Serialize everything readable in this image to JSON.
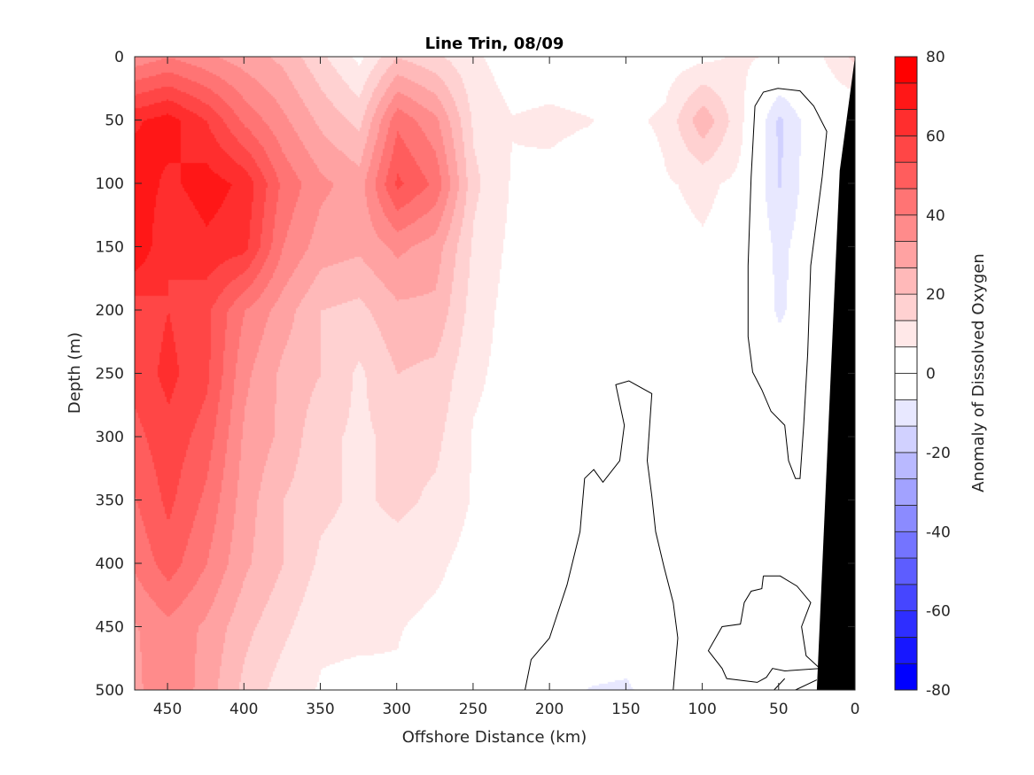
{
  "chart_data": {
    "type": "heatmap",
    "subtype": "filled-contour",
    "title": "Line Trin, 08/09",
    "xlabel": "Offshore Distance (km)",
    "ylabel": "Depth (m)",
    "colorbar_label": "Anomaly of Dissolved Oxygen",
    "xlim": [
      0,
      471.5
    ],
    "x_reversed": true,
    "ylim": [
      0,
      500
    ],
    "y_reversed": true,
    "xticks": [
      450,
      400,
      350,
      300,
      250,
      200,
      150,
      100,
      50,
      0
    ],
    "yticks": [
      0,
      50,
      100,
      150,
      200,
      250,
      300,
      350,
      400,
      450,
      500
    ],
    "clim": [
      -80,
      80
    ],
    "n_levels": 24,
    "colorbar_ticks": [
      80,
      60,
      40,
      20,
      0,
      -20,
      -40,
      -60,
      -80
    ],
    "colors": {
      "positive": "#ff0000",
      "negative": "#0000ff",
      "neutral": "#ffffff",
      "bathymetry": "#000000",
      "contour": "#000000"
    },
    "grid_x_km": [
      475,
      450,
      425,
      400,
      375,
      350,
      325,
      300,
      275,
      250,
      225,
      200,
      175,
      150,
      125,
      100,
      75,
      50,
      25,
      0
    ],
    "grid_depth_m": [
      0,
      50,
      100,
      150,
      200,
      250,
      300,
      350,
      400,
      450,
      500
    ],
    "z": [
      [
        35,
        40,
        35,
        30,
        25,
        15,
        5,
        20,
        15,
        8,
        3,
        3,
        2,
        0,
        3,
        5,
        8,
        5,
        5,
        15
      ],
      [
        65,
        70,
        60,
        45,
        35,
        25,
        18,
        45,
        35,
        12,
        7,
        8,
        7,
        5,
        8,
        25,
        8,
        -15,
        0,
        0
      ],
      [
        72,
        65,
        70,
        65,
        45,
        35,
        30,
        55,
        45,
        15,
        6,
        5,
        3,
        0,
        6,
        8,
        5,
        -14,
        0,
        0
      ],
      [
        75,
        60,
        65,
        62,
        40,
        30,
        28,
        35,
        30,
        12,
        5,
        5,
        4,
        0,
        5,
        6,
        4,
        -9,
        0,
        0
      ],
      [
        55,
        60,
        55,
        40,
        30,
        20,
        18,
        25,
        25,
        10,
        4,
        3,
        4,
        0,
        4,
        5,
        3,
        -8,
        0,
        0
      ],
      [
        55,
        62,
        55,
        35,
        25,
        20,
        12,
        20,
        18,
        8,
        4,
        3,
        2,
        3,
        4,
        4,
        3,
        -2,
        0,
        0
      ],
      [
        50,
        58,
        50,
        32,
        25,
        15,
        12,
        15,
        15,
        6,
        4,
        3,
        -1,
        1,
        3,
        2,
        2,
        2,
        0,
        0
      ],
      [
        45,
        55,
        45,
        30,
        20,
        15,
        12,
        15,
        12,
        6,
        4,
        2,
        -1,
        -1,
        1,
        1,
        1,
        1,
        0,
        0
      ],
      [
        40,
        50,
        40,
        28,
        20,
        12,
        10,
        10,
        8,
        4,
        3,
        1,
        -1,
        -1,
        -1,
        1,
        1,
        -1,
        0,
        0
      ],
      [
        32,
        38,
        32,
        22,
        15,
        8,
        8,
        7,
        5,
        4,
        2,
        1,
        -1,
        -1,
        0,
        1,
        -1,
        -1,
        0,
        0
      ],
      [
        30,
        40,
        30,
        18,
        10,
        6,
        5,
        6,
        4,
        2,
        1,
        -1,
        -7,
        -8,
        -1,
        1,
        -1,
        -1,
        -1,
        0
      ]
    ],
    "zero_contours": [
      [
        [
          50.5,
          25
        ],
        [
          36,
          27
        ],
        [
          27,
          39
        ],
        [
          18.5,
          59
        ],
        [
          21.5,
          95
        ],
        [
          29,
          165
        ],
        [
          31,
          235
        ],
        [
          33.6,
          291
        ],
        [
          36,
          333
        ],
        [
          39,
          333
        ],
        [
          43.5,
          319
        ],
        [
          46,
          291
        ],
        [
          55,
          280
        ],
        [
          61,
          263
        ],
        [
          67,
          249
        ],
        [
          70,
          221
        ],
        [
          70,
          165
        ],
        [
          68,
          95
        ],
        [
          65.5,
          39
        ],
        [
          60,
          28
        ],
        [
          50.5,
          25
        ]
      ],
      [
        [
          216,
          500
        ],
        [
          212,
          476
        ],
        [
          200,
          459
        ],
        [
          188.5,
          417
        ],
        [
          180,
          375
        ],
        [
          177,
          333
        ],
        [
          171,
          326
        ],
        [
          165,
          336
        ],
        [
          154,
          319
        ],
        [
          151,
          291
        ],
        [
          156.6,
          259
        ],
        [
          148,
          256
        ],
        [
          133,
          266
        ],
        [
          136,
          319
        ],
        [
          133,
          347
        ],
        [
          130.5,
          375
        ],
        [
          125,
          403
        ],
        [
          119,
          431
        ],
        [
          116,
          459
        ],
        [
          119,
          500
        ]
      ],
      [
        [
          60,
          410
        ],
        [
          49,
          410
        ],
        [
          38,
          418
        ],
        [
          29,
          431
        ],
        [
          35,
          450
        ],
        [
          32,
          473
        ],
        [
          23,
          483
        ],
        [
          46,
          485
        ],
        [
          54,
          483
        ],
        [
          58,
          490
        ],
        [
          64,
          494
        ],
        [
          84,
          491
        ],
        [
          87,
          483
        ],
        [
          96,
          469
        ],
        [
          87,
          450
        ],
        [
          75,
          448
        ],
        [
          72.5,
          431
        ],
        [
          68,
          422
        ],
        [
          61,
          420
        ],
        [
          60,
          410
        ]
      ],
      [
        [
          53,
          500
        ],
        [
          46,
          491
        ]
      ],
      [
        [
          39,
          500
        ],
        [
          25,
          492
        ]
      ]
    ],
    "bathymetry": [
      [
        0,
        0
      ],
      [
        10,
        90
      ],
      [
        25,
        500
      ],
      [
        0,
        500
      ]
    ]
  }
}
